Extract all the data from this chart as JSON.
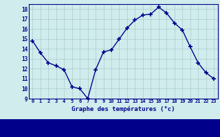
{
  "hours": [
    0,
    1,
    2,
    3,
    4,
    5,
    6,
    7,
    8,
    9,
    10,
    11,
    12,
    13,
    14,
    15,
    16,
    17,
    18,
    19,
    20,
    21,
    22,
    23
  ],
  "temps": [
    14.8,
    13.6,
    12.6,
    12.3,
    11.9,
    10.2,
    10.0,
    9.0,
    11.9,
    13.7,
    13.9,
    15.0,
    16.1,
    16.9,
    17.4,
    17.5,
    18.2,
    17.6,
    16.6,
    15.9,
    14.2,
    12.6,
    11.6,
    11.0
  ],
  "ylim": [
    9,
    18.5
  ],
  "yticks": [
    9,
    10,
    11,
    12,
    13,
    14,
    15,
    16,
    17,
    18
  ],
  "xlabel": "Graphe des températures (°c)",
  "line_color": "#00008B",
  "bg_color": "#D0ECEC",
  "grid_color": "#AACCCC",
  "axis_label_color": "#00008B",
  "tick_label_color": "#00008B",
  "marker": "+",
  "markersize": 4,
  "linewidth": 1.0,
  "bottom_bar_color": "#00008B",
  "bottom_bar_height": 0.13
}
